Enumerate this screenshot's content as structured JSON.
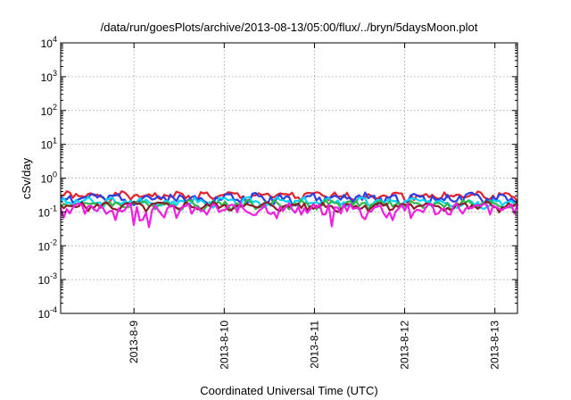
{
  "chart_data": {
    "type": "line",
    "title": "/data/run/goesPlots/archive/2013-08-13/05:00/flux/../bryn/5daysMoon.plot",
    "xlabel": "Coordinated Universal Time (UTC)",
    "ylabel": "cSv/day",
    "yscale": "log",
    "ylim": [
      0.0001,
      10000
    ],
    "y_ticks": [
      {
        "mantissa": "10",
        "exp": "-4"
      },
      {
        "mantissa": "10",
        "exp": "-3"
      },
      {
        "mantissa": "10",
        "exp": "-2"
      },
      {
        "mantissa": "10",
        "exp": "-1"
      },
      {
        "mantissa": "10",
        "exp": "0"
      },
      {
        "mantissa": "10",
        "exp": "1"
      },
      {
        "mantissa": "10",
        "exp": "2"
      },
      {
        "mantissa": "10",
        "exp": "3"
      },
      {
        "mantissa": "10",
        "exp": "4"
      }
    ],
    "xlim": [
      "2013-08-08T04:30",
      "2013-08-13T06:00"
    ],
    "x_ticks": [
      "2013-8-9",
      "2013-8-10",
      "2013-8-11",
      "2013-8-12",
      "2013-8-13"
    ],
    "grid": true,
    "legend": "none",
    "series": [
      {
        "color": "#e8202a",
        "mean": 0.3,
        "amp": 0.07,
        "seed": 1,
        "dips": false
      },
      {
        "color": "#2a3fe6",
        "mean": 0.26,
        "amp": 0.08,
        "seed": 2,
        "dips": false
      },
      {
        "color": "#00d4ff",
        "mean": 0.2,
        "amp": 0.05,
        "seed": 3,
        "dips": false
      },
      {
        "color": "#2fb84a",
        "mean": 0.17,
        "amp": 0.04,
        "seed": 4,
        "dips": false
      },
      {
        "color": "#8a1e2a",
        "mean": 0.15,
        "amp": 0.035,
        "seed": 5,
        "dips": false
      },
      {
        "color": "#f21fe3",
        "mean": 0.125,
        "amp": 0.05,
        "seed": 6,
        "dips": true
      }
    ]
  }
}
